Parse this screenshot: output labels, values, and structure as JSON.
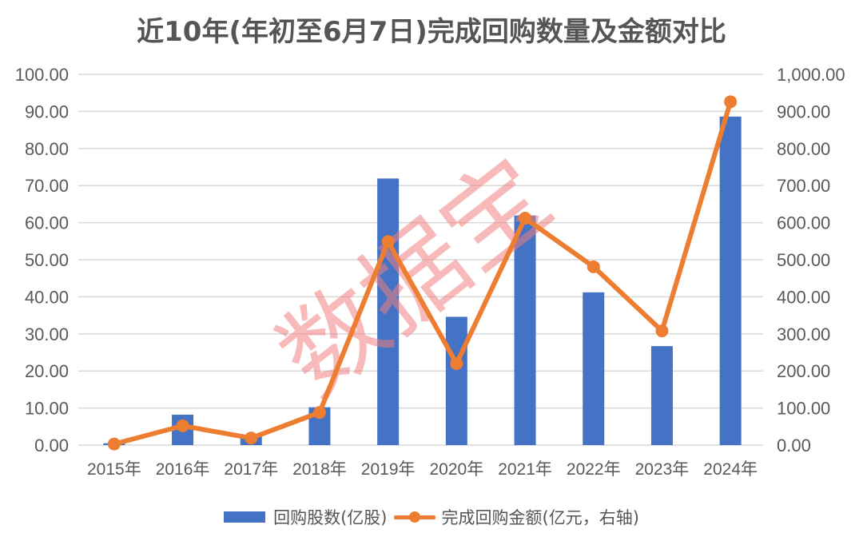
{
  "chart_data": {
    "type": "bar+line",
    "title": "近10年(年初至6月7日)完成回购数量及金额对比",
    "categories": [
      "2015年",
      "2016年",
      "2017年",
      "2018年",
      "2019年",
      "2020年",
      "2021年",
      "2022年",
      "2023年",
      "2024年"
    ],
    "series": [
      {
        "name": "回购股数(亿股)",
        "type": "bar",
        "axis": "left",
        "color": "#4472C4",
        "values": [
          0.5,
          8.2,
          2.8,
          10.2,
          71.9,
          34.6,
          61.9,
          41.2,
          26.7,
          88.6
        ]
      },
      {
        "name": "完成回购金额(亿元，右轴)",
        "type": "line",
        "axis": "right",
        "color": "#ED7D31",
        "values": [
          3,
          52,
          19,
          88,
          549,
          220,
          612,
          481,
          308,
          926
        ]
      }
    ],
    "left_axis": {
      "ylim": [
        0,
        100
      ],
      "ticks": [
        "0.00",
        "10.00",
        "20.00",
        "30.00",
        "40.00",
        "50.00",
        "60.00",
        "70.00",
        "80.00",
        "90.00",
        "100.00"
      ]
    },
    "right_axis": {
      "ylim": [
        0,
        1000
      ],
      "ticks": [
        "0.00",
        "100.00",
        "200.00",
        "300.00",
        "400.00",
        "500.00",
        "600.00",
        "700.00",
        "800.00",
        "900.00",
        "1,000.00"
      ]
    },
    "xlabel": "",
    "ylabel": "",
    "grid": true,
    "legend_position": "bottom",
    "watermark": "数据宝"
  },
  "legend": {
    "bar_label": "回购股数(亿股)",
    "line_label": "完成回购金额(亿元，右轴)"
  },
  "colors": {
    "bar": "#4472C4",
    "line": "#ED7D31",
    "grid": "#D9D9D9",
    "text": "#595959",
    "watermark": "#F08080"
  }
}
